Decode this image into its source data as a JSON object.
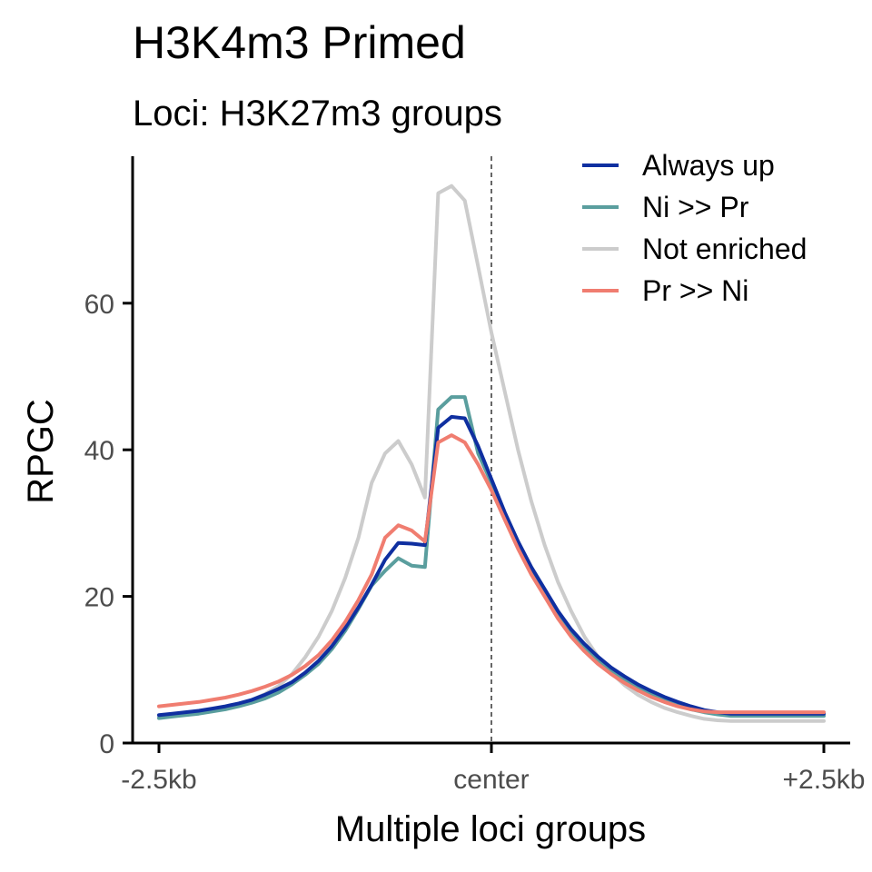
{
  "chart_data": {
    "type": "line",
    "title": "H3K4m3 Primed",
    "subtitle": "Loci: H3K27m3 groups",
    "xlabel": "Multiple loci groups",
    "ylabel": "RPGC",
    "x": [
      -50,
      -48,
      -46,
      -44,
      -42,
      -40,
      -38,
      -36,
      -34,
      -32,
      -30,
      -28,
      -26,
      -24,
      -22,
      -20,
      -18,
      -16,
      -14,
      -12,
      -10,
      -8,
      -6,
      -4,
      -2,
      0,
      2,
      4,
      6,
      8,
      10,
      12,
      14,
      16,
      18,
      20,
      22,
      24,
      26,
      28,
      30,
      32,
      34,
      36,
      38,
      40,
      42,
      44,
      46,
      48,
      50
    ],
    "xlim": [
      -50,
      50
    ],
    "ylim": [
      0,
      78
    ],
    "x_ticks": [
      {
        "value": -50,
        "label": "-2.5kb"
      },
      {
        "value": 0,
        "label": "center"
      },
      {
        "value": 50,
        "label": "+2.5kb"
      }
    ],
    "y_ticks": [
      {
        "value": 0,
        "label": "0"
      },
      {
        "value": 20,
        "label": "20"
      },
      {
        "value": 40,
        "label": "40"
      },
      {
        "value": 60,
        "label": "60"
      }
    ],
    "center_line": 0,
    "legend_position": "top-right",
    "series": [
      {
        "name": "Always up",
        "color": "#0f2fa0",
        "values": [
          3.8,
          4.0,
          4.2,
          4.4,
          4.7,
          5.0,
          5.4,
          5.9,
          6.6,
          7.4,
          8.3,
          9.6,
          11.2,
          13.2,
          15.7,
          18.5,
          21.6,
          25.0,
          27.3,
          27.2,
          27.0,
          43.0,
          44.5,
          44.3,
          40.5,
          36.0,
          31.5,
          27.5,
          24.0,
          21.0,
          18.0,
          15.5,
          13.5,
          11.8,
          10.3,
          9.1,
          8.0,
          7.1,
          6.3,
          5.6,
          5.0,
          4.5,
          4.2,
          4.0,
          4.0,
          4.0,
          4.0,
          4.0,
          4.0,
          4.0,
          4.0
        ]
      },
      {
        "name": "Ni >> Pr",
        "color": "#5a9e9e",
        "values": [
          3.4,
          3.6,
          3.8,
          4.0,
          4.3,
          4.6,
          5.0,
          5.5,
          6.1,
          6.9,
          8.0,
          9.3,
          10.8,
          12.8,
          15.3,
          18.3,
          21.5,
          23.5,
          25.2,
          24.2,
          24.0,
          45.5,
          47.2,
          47.2,
          39.5,
          35.5,
          31.0,
          27.0,
          23.5,
          20.3,
          17.5,
          15.0,
          13.0,
          11.3,
          9.8,
          8.5,
          7.5,
          6.6,
          5.8,
          5.1,
          4.6,
          4.2,
          3.9,
          3.7,
          3.7,
          3.7,
          3.7,
          3.7,
          3.7,
          3.7,
          3.7
        ]
      },
      {
        "name": "Not enriched",
        "color": "#cccccc",
        "values": [
          3.5,
          3.7,
          3.9,
          4.1,
          4.4,
          4.8,
          5.3,
          5.9,
          6.7,
          7.8,
          9.4,
          11.7,
          14.5,
          18.0,
          22.5,
          28.0,
          35.5,
          39.5,
          41.2,
          38.0,
          33.5,
          75.0,
          76.0,
          74.0,
          65.0,
          56.0,
          48.0,
          40.0,
          33.0,
          27.0,
          22.0,
          18.0,
          14.5,
          11.8,
          9.6,
          7.9,
          6.6,
          5.6,
          4.8,
          4.2,
          3.7,
          3.3,
          3.1,
          3.0,
          3.0,
          3.0,
          3.0,
          3.0,
          3.0,
          3.0,
          3.0
        ]
      },
      {
        "name": "Pr >> Ni",
        "color": "#f07d70",
        "values": [
          5.0,
          5.2,
          5.4,
          5.6,
          5.9,
          6.2,
          6.6,
          7.1,
          7.7,
          8.4,
          9.3,
          10.5,
          12.0,
          14.0,
          16.5,
          19.5,
          23.0,
          28.0,
          29.7,
          29.0,
          27.5,
          41.0,
          42.0,
          41.0,
          38.0,
          34.5,
          30.5,
          26.5,
          23.0,
          20.0,
          17.0,
          14.5,
          12.5,
          10.8,
          9.4,
          8.2,
          7.2,
          6.3,
          5.6,
          5.0,
          4.6,
          4.3,
          4.2,
          4.2,
          4.2,
          4.2,
          4.2,
          4.2,
          4.2,
          4.2,
          4.2
        ]
      }
    ]
  }
}
